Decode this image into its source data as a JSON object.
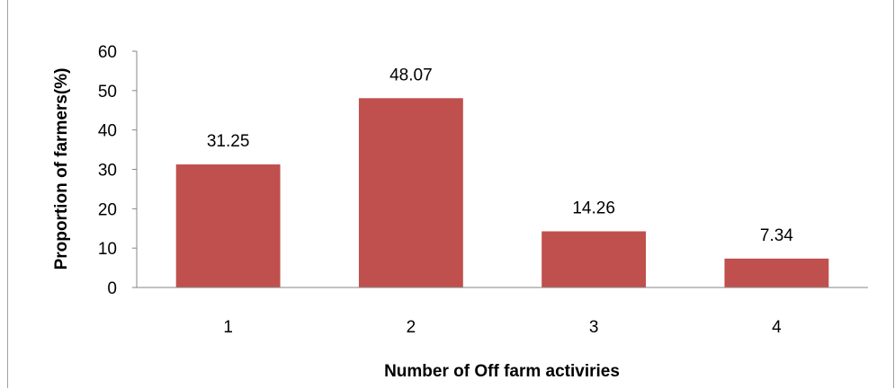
{
  "chart_data": {
    "type": "bar",
    "categories": [
      "1",
      "2",
      "3",
      "4"
    ],
    "values": [
      31.25,
      48.07,
      14.26,
      7.34
    ],
    "data_labels": [
      "31.25",
      "48.07",
      "14.26",
      "7.34"
    ],
    "title": "",
    "xlabel": "Number of Off farm activiries",
    "ylabel": "Proportion of farmers(%)",
    "ylim": [
      0,
      60
    ],
    "yticks": [
      "0",
      "10",
      "20",
      "30",
      "40",
      "50",
      "60"
    ],
    "grid": false,
    "legend": "none",
    "bar_color": "#c0504d"
  }
}
